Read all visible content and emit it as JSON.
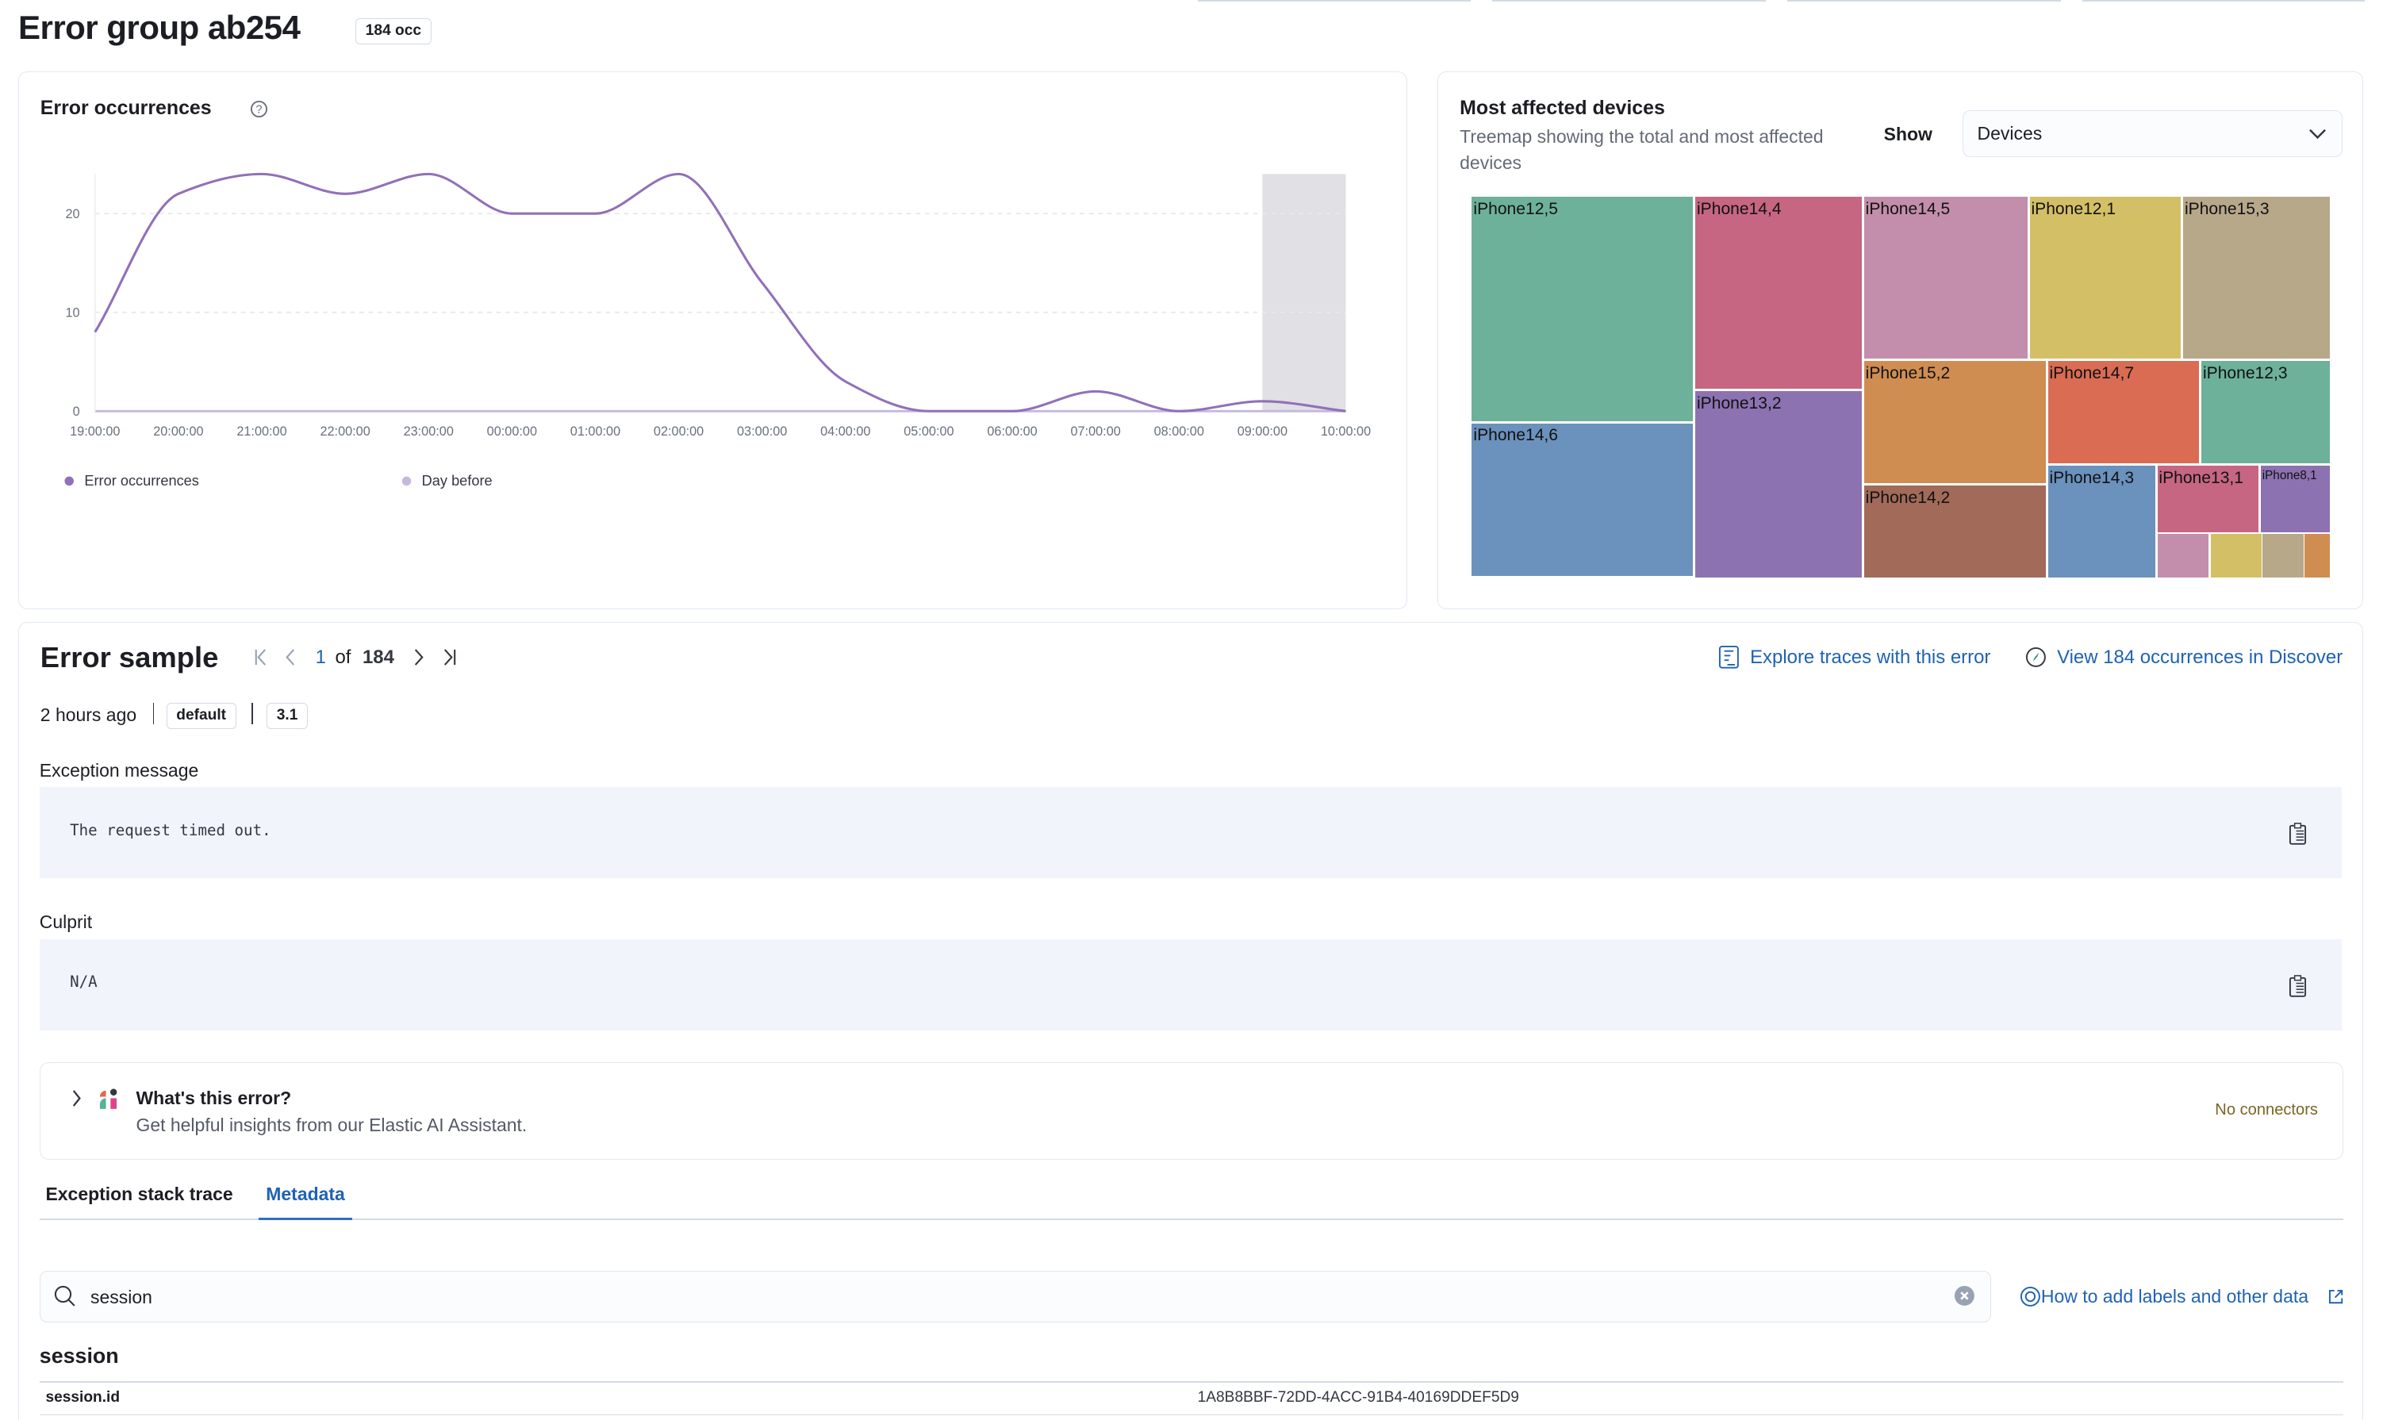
{
  "header": {
    "title": "Error group ab254",
    "occurrences_badge": "184 occ"
  },
  "occurrences_panel": {
    "title": "Error occurrences",
    "help_icon": "question-circle-icon"
  },
  "chart_data": {
    "type": "line",
    "title": "Error occurrences",
    "x": [
      "19:00:00",
      "20:00:00",
      "21:00:00",
      "22:00:00",
      "23:00:00",
      "00:00:00",
      "01:00:00",
      "02:00:00",
      "03:00:00",
      "04:00:00",
      "05:00:00",
      "06:00:00",
      "07:00:00",
      "08:00:00",
      "09:00:00",
      "10:00:00"
    ],
    "series": [
      {
        "name": "Error occurrences",
        "color": "#9170b8",
        "values": [
          8,
          22,
          24,
          22,
          24,
          20,
          20,
          24,
          13,
          3,
          0,
          0,
          2,
          0,
          1,
          0
        ]
      }
    ],
    "legend": [
      {
        "name": "Error occurrences",
        "color": "#9170b8"
      },
      {
        "name": "Day before",
        "color": "#c6b8dd"
      }
    ],
    "yticks": [
      0,
      10,
      20
    ],
    "ylim": [
      0,
      24
    ],
    "grid": "horizontal dashed",
    "legend_position": "bottom-left",
    "highlight_band": [
      "09:00:00",
      "10:00:00"
    ]
  },
  "devices_panel": {
    "title": "Most affected devices",
    "subtitle": "Treemap showing the total and most affected devices",
    "show_label": "Show",
    "show_select": "Devices",
    "treemap": [
      {
        "label": "iPhone12,5",
        "value": 15.6,
        "color": "#6db19a"
      },
      {
        "label": "iPhone14,6",
        "value": 10.6,
        "color": "#6b91bd"
      },
      {
        "label": "iPhone14,4",
        "value": 10.1,
        "color": "#c66682"
      },
      {
        "label": "iPhone13,2",
        "value": 9.7,
        "color": "#8d72b1"
      },
      {
        "label": "iPhone14,5",
        "value": 8.3,
        "color": "#c38eab"
      },
      {
        "label": "iPhone12,1",
        "value": 7.7,
        "color": "#d3c066"
      },
      {
        "label": "iPhone15,3",
        "value": 7.4,
        "color": "#b7a88a"
      },
      {
        "label": "iPhone15,2",
        "value": 7.0,
        "color": "#cf8d52"
      },
      {
        "label": "iPhone14,2",
        "value": 5.2,
        "color": "#a16a59"
      },
      {
        "label": "iPhone14,7",
        "value": 4.9,
        "color": "#d96c53"
      },
      {
        "label": "iPhone12,3",
        "value": 4.1,
        "color": "#6db19a"
      },
      {
        "label": "iPhone14,3",
        "value": 3.7,
        "color": "#6b91bd"
      },
      {
        "label": "iPhone13,1",
        "value": 2.1,
        "color": "#c66682"
      },
      {
        "label": "iPhone8,1",
        "value": 1.4,
        "color": "#8d72b1"
      },
      {
        "label": "",
        "value": 0.7,
        "color": "#c38eab"
      },
      {
        "label": "",
        "value": 0.7,
        "color": "#d3c066"
      },
      {
        "label": "",
        "value": 0.5,
        "color": "#b7a88a"
      },
      {
        "label": "",
        "value": 0.3,
        "color": "#cf8d52"
      }
    ]
  },
  "sample": {
    "title": "Error sample",
    "page_current": "1",
    "page_of": "of",
    "page_total": "184",
    "explore_traces": "Explore traces with this error",
    "view_discover": "View 184 occurrences in Discover",
    "time_ago": "2 hours ago",
    "env_badge": "default",
    "version_badge": "3.1",
    "exception_label": "Exception message",
    "exception_value": "The request timed out.",
    "culprit_label": "Culprit",
    "culprit_value": "N/A",
    "ai": {
      "title": "What's this error?",
      "subtitle": "Get helpful insights from our Elastic AI Assistant.",
      "status": "No connectors"
    },
    "tabs": [
      {
        "label": "Exception stack trace",
        "active": false
      },
      {
        "label": "Metadata",
        "active": true
      }
    ],
    "search_value": "session",
    "help_link": "How to add labels and other data",
    "section_title": "session",
    "rows": [
      {
        "key": "session.id",
        "value": "1A8B8BBF-72DD-4ACC-91B4-40169DDEF5D9"
      }
    ]
  }
}
